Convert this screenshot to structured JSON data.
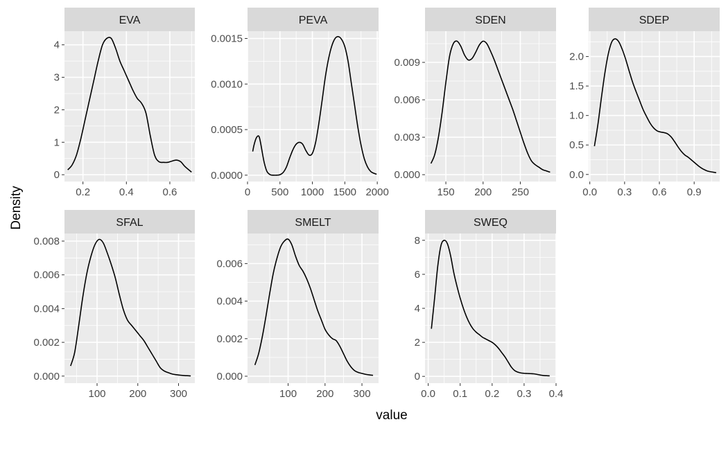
{
  "chart_data": {
    "type": "density",
    "facet_layout": "facet_wrap, 4 columns, free scales",
    "grid": true,
    "xlabel": "value",
    "ylabel": "Density",
    "colors": {
      "panel_background": "#ebebeb",
      "strip_background": "#d9d9d9",
      "grid_line": "#ffffff",
      "density_line": "#000000",
      "tick_text": "#4d4d4d"
    },
    "panels": [
      {
        "name": "EVA",
        "xlim": [
          0.115,
          0.715
        ],
        "ylim": [
          -0.21,
          4.42
        ],
        "x_ticks": [
          0.2,
          0.4,
          0.6
        ],
        "x_tick_labels": [
          "0.2",
          "0.4",
          "0.6"
        ],
        "y_ticks": [
          0,
          1,
          2,
          3,
          4
        ],
        "y_tick_labels": [
          "0",
          "1",
          "2",
          "3",
          "4"
        ],
        "x": [
          0.13,
          0.15,
          0.17,
          0.19,
          0.21,
          0.23,
          0.25,
          0.27,
          0.29,
          0.31,
          0.33,
          0.35,
          0.37,
          0.39,
          0.41,
          0.43,
          0.45,
          0.47,
          0.49,
          0.51,
          0.53,
          0.55,
          0.57,
          0.59,
          0.61,
          0.63,
          0.65,
          0.67,
          0.7
        ],
        "y": [
          0.15,
          0.3,
          0.6,
          1.1,
          1.7,
          2.3,
          2.9,
          3.5,
          4.0,
          4.2,
          4.2,
          3.9,
          3.5,
          3.2,
          2.9,
          2.6,
          2.35,
          2.2,
          1.9,
          1.2,
          0.6,
          0.4,
          0.38,
          0.38,
          0.42,
          0.45,
          0.4,
          0.25,
          0.08
        ]
      },
      {
        "name": "PEVA",
        "xlim": [
          0.0,
          2020.0
        ],
        "ylim": [
          -7e-05,
          0.00158
        ],
        "x_ticks": [
          0,
          500,
          1000,
          1500,
          2000
        ],
        "x_tick_labels": [
          "0",
          "500",
          "1000",
          "1500",
          "2000"
        ],
        "y_ticks": [
          0.0,
          0.0005,
          0.001,
          0.0015
        ],
        "y_tick_labels": [
          "0.0000",
          "0.0005",
          "0.0010",
          "0.0015"
        ],
        "x": [
          80,
          100,
          130,
          160,
          180,
          200,
          230,
          260,
          300,
          350,
          400,
          450,
          500,
          550,
          600,
          650,
          700,
          750,
          800,
          850,
          900,
          950,
          1000,
          1050,
          1100,
          1150,
          1200,
          1250,
          1300,
          1350,
          1400,
          1450,
          1500,
          1550,
          1600,
          1650,
          1700,
          1750,
          1800,
          1850,
          1900,
          1950,
          1990
        ],
        "y": [
          0.00026,
          0.00033,
          0.0004,
          0.00043,
          0.00042,
          0.00036,
          0.00024,
          0.00013,
          4e-05,
          5e-06,
          0.0,
          0.0,
          5e-06,
          3e-05,
          9e-05,
          0.00019,
          0.00028,
          0.00034,
          0.00036,
          0.00034,
          0.00027,
          0.00022,
          0.00024,
          0.00036,
          0.00057,
          0.00082,
          0.00108,
          0.00128,
          0.00142,
          0.0015,
          0.00152,
          0.00149,
          0.00141,
          0.00125,
          0.00101,
          0.00077,
          0.00053,
          0.00033,
          0.00018,
          9e-05,
          4e-05,
          2e-05,
          1e-05
        ]
      },
      {
        "name": "SDEN",
        "xlim": [
          122.0,
          298.0
        ],
        "ylim": [
          -0.00055,
          0.0115
        ],
        "x_ticks": [
          150,
          200,
          250
        ],
        "x_tick_labels": [
          "150",
          "200",
          "250"
        ],
        "y_ticks": [
          0.0,
          0.003,
          0.006,
          0.009
        ],
        "y_tick_labels": [
          "0.000",
          "0.003",
          "0.006",
          "0.009"
        ],
        "x": [
          130,
          135,
          140,
          145,
          150,
          155,
          160,
          165,
          170,
          175,
          180,
          185,
          190,
          195,
          200,
          205,
          210,
          215,
          220,
          225,
          230,
          235,
          240,
          245,
          250,
          255,
          260,
          265,
          270,
          275,
          280,
          285,
          290
        ],
        "y": [
          0.0009,
          0.0016,
          0.003,
          0.005,
          0.0074,
          0.0095,
          0.0105,
          0.0107,
          0.0103,
          0.0096,
          0.0092,
          0.0093,
          0.0098,
          0.0104,
          0.0107,
          0.0105,
          0.0099,
          0.0092,
          0.0084,
          0.0076,
          0.0068,
          0.006,
          0.0052,
          0.0043,
          0.0034,
          0.0025,
          0.0017,
          0.0011,
          0.0008,
          0.0006,
          0.0004,
          0.0003,
          0.0002
        ]
      },
      {
        "name": "SDEP",
        "xlim": [
          -0.01,
          1.12
        ],
        "ylim": [
          -0.12,
          2.43
        ],
        "x_ticks": [
          0.0,
          0.3,
          0.6,
          0.9
        ],
        "x_tick_labels": [
          "0.0",
          "0.3",
          "0.6",
          "0.9"
        ],
        "y_ticks": [
          0.0,
          0.5,
          1.0,
          1.5,
          2.0
        ],
        "y_tick_labels": [
          "0.0",
          "0.5",
          "1.0",
          "1.5",
          "2.0"
        ],
        "x": [
          0.04,
          0.07,
          0.1,
          0.13,
          0.16,
          0.19,
          0.22,
          0.25,
          0.28,
          0.31,
          0.34,
          0.37,
          0.4,
          0.43,
          0.46,
          0.49,
          0.52,
          0.55,
          0.58,
          0.61,
          0.64,
          0.67,
          0.7,
          0.73,
          0.76,
          0.79,
          0.82,
          0.85,
          0.88,
          0.91,
          0.94,
          0.97,
          1.0,
          1.03,
          1.06,
          1.09
        ],
        "y": [
          0.48,
          0.85,
          1.3,
          1.72,
          2.05,
          2.25,
          2.3,
          2.25,
          2.12,
          1.95,
          1.75,
          1.56,
          1.4,
          1.25,
          1.1,
          0.98,
          0.87,
          0.79,
          0.74,
          0.72,
          0.71,
          0.69,
          0.64,
          0.56,
          0.47,
          0.39,
          0.33,
          0.29,
          0.24,
          0.19,
          0.14,
          0.1,
          0.07,
          0.05,
          0.04,
          0.03
        ]
      },
      {
        "name": "SFAL",
        "xlim": [
          20.0,
          340.0
        ],
        "ylim": [
          -0.00042,
          0.00845
        ],
        "x_ticks": [
          100,
          200,
          300
        ],
        "x_tick_labels": [
          "100",
          "200",
          "300"
        ],
        "y_ticks": [
          0.0,
          0.002,
          0.004,
          0.006,
          0.008
        ],
        "y_tick_labels": [
          "0.000",
          "0.002",
          "0.004",
          "0.006",
          "0.008"
        ],
        "x": [
          35,
          45,
          55,
          65,
          75,
          85,
          95,
          105,
          115,
          125,
          135,
          145,
          155,
          165,
          175,
          185,
          195,
          205,
          215,
          225,
          235,
          245,
          255,
          265,
          275,
          285,
          295,
          305,
          315,
          325,
          330
        ],
        "y": [
          0.0006,
          0.0014,
          0.003,
          0.0047,
          0.0061,
          0.0071,
          0.0078,
          0.0081,
          0.0079,
          0.0073,
          0.0066,
          0.0058,
          0.0048,
          0.0039,
          0.0033,
          0.003,
          0.0027,
          0.0024,
          0.0021,
          0.0017,
          0.0013,
          0.0009,
          0.0005,
          0.0003,
          0.0002,
          0.00012,
          8e-05,
          5e-05,
          3e-05,
          2e-05,
          1e-05
        ]
      },
      {
        "name": "SMELT",
        "xlim": [
          -10.0,
          345.0
        ],
        "ylim": [
          -0.00037,
          0.0076
        ],
        "x_ticks": [
          100,
          200,
          300
        ],
        "x_tick_labels": [
          "100",
          "200",
          "300"
        ],
        "y_ticks": [
          0.0,
          0.002,
          0.004,
          0.006
        ],
        "y_tick_labels": [
          "0.000",
          "0.002",
          "0.004",
          "0.006"
        ],
        "x": [
          10,
          20,
          30,
          40,
          50,
          60,
          70,
          80,
          90,
          100,
          110,
          120,
          130,
          140,
          150,
          160,
          170,
          180,
          190,
          200,
          210,
          220,
          230,
          240,
          250,
          260,
          270,
          280,
          290,
          300,
          310,
          320,
          330
        ],
        "y": [
          0.0006,
          0.0012,
          0.0021,
          0.0032,
          0.0044,
          0.0055,
          0.0063,
          0.0069,
          0.0072,
          0.0073,
          0.007,
          0.0064,
          0.0059,
          0.0056,
          0.0052,
          0.0047,
          0.0041,
          0.0035,
          0.003,
          0.0025,
          0.0022,
          0.002,
          0.0019,
          0.0016,
          0.0012,
          0.0008,
          0.0005,
          0.0003,
          0.0002,
          0.00015,
          0.0001,
          7e-05,
          5e-05
        ]
      },
      {
        "name": "SWEQ",
        "xlim": [
          -0.01,
          0.4
        ],
        "ylim": [
          -0.4,
          8.4
        ],
        "x_ticks": [
          0.0,
          0.1,
          0.2,
          0.3,
          0.4
        ],
        "x_tick_labels": [
          "0.0",
          "0.1",
          "0.2",
          "0.3",
          "0.4"
        ],
        "y_ticks": [
          0,
          2,
          4,
          6,
          8
        ],
        "y_tick_labels": [
          "0",
          "2",
          "4",
          "6",
          "8"
        ],
        "x": [
          0.01,
          0.02,
          0.03,
          0.04,
          0.05,
          0.06,
          0.07,
          0.08,
          0.09,
          0.1,
          0.11,
          0.12,
          0.13,
          0.14,
          0.15,
          0.16,
          0.17,
          0.18,
          0.19,
          0.2,
          0.21,
          0.22,
          0.23,
          0.24,
          0.25,
          0.26,
          0.27,
          0.28,
          0.29,
          0.3,
          0.31,
          0.32,
          0.33,
          0.34,
          0.35,
          0.36,
          0.37,
          0.38
        ],
        "y": [
          2.8,
          4.6,
          6.5,
          7.7,
          8.0,
          7.8,
          7.1,
          6.1,
          5.3,
          4.6,
          4.0,
          3.5,
          3.1,
          2.8,
          2.6,
          2.45,
          2.3,
          2.2,
          2.1,
          2.0,
          1.85,
          1.65,
          1.4,
          1.15,
          0.85,
          0.55,
          0.35,
          0.25,
          0.2,
          0.18,
          0.17,
          0.16,
          0.15,
          0.12,
          0.08,
          0.05,
          0.04,
          0.03
        ]
      }
    ]
  }
}
